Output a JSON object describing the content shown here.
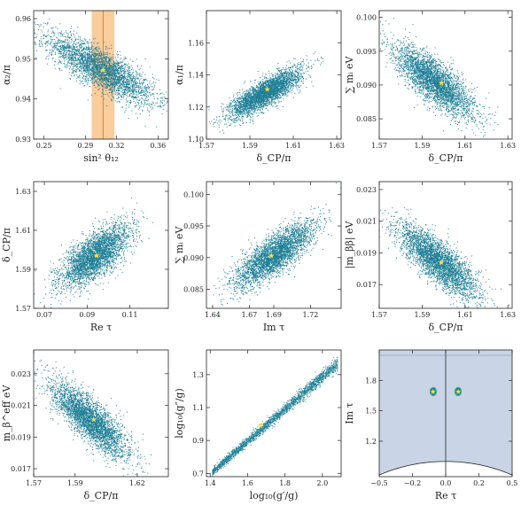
{
  "colors": {
    "points": "#1f7f96",
    "star": "#ffe23a",
    "band": "#f7a24a",
    "region": "#c9d4e6",
    "frame": "#222222"
  },
  "chart_data": [
    {
      "type": "scatter",
      "xlabel": "sin² θ₁₂",
      "ylabel": "α₂/π",
      "xticks": [
        "0.25",
        "0.29",
        "0.32",
        "0.36"
      ],
      "yticks": [
        "0.93",
        "0.94",
        "0.95",
        "0.96"
      ],
      "xlim": [
        0.24,
        0.37
      ],
      "ylim": [
        0.93,
        0.962
      ],
      "xtick_values": [
        0.25,
        0.29,
        0.32,
        0.36
      ],
      "ytick_values": [
        0.93,
        0.94,
        0.95,
        0.96
      ],
      "cloud": {
        "center": [
          0.305,
          0.9475
        ],
        "sx": 0.027,
        "sy": 0.0045,
        "rho": -0.82
      },
      "best_fit": [
        0.307,
        0.9472
      ],
      "band": {
        "x_range": [
          0.296,
          0.318
        ],
        "center": 0.307
      }
    },
    {
      "type": "scatter",
      "xlabel": "δ_CP/π",
      "ylabel": "α₁/π",
      "xticks": [
        "1.57",
        "1.59",
        "1.61",
        "1.63"
      ],
      "yticks": [
        "1.10",
        "1.12",
        "1.14",
        "1.16"
      ],
      "xlim": [
        1.57,
        1.632
      ],
      "ylim": [
        1.1,
        1.18
      ],
      "xtick_values": [
        1.57,
        1.59,
        1.61,
        1.63
      ],
      "ytick_values": [
        1.1,
        1.12,
        1.14,
        1.16
      ],
      "cloud": {
        "center": [
          1.597,
          1.129
        ],
        "sx": 0.0085,
        "sy": 0.0078,
        "rho": 0.82
      },
      "best_fit": [
        1.598,
        1.131
      ]
    },
    {
      "type": "scatter",
      "xlabel": "δ_CP/π",
      "ylabel": "∑ mᵢ eV",
      "xticks": [
        "1.57",
        "1.59",
        "1.61",
        "1.63"
      ],
      "yticks": [
        "0.085",
        "0.090",
        "0.095",
        "0.100"
      ],
      "xlim": [
        1.57,
        1.632
      ],
      "ylim": [
        0.082,
        0.101
      ],
      "xtick_values": [
        1.57,
        1.59,
        1.61,
        1.63
      ],
      "ytick_values": [
        0.085,
        0.09,
        0.095,
        0.1
      ],
      "cloud": {
        "center": [
          1.596,
          0.0905
        ],
        "sx": 0.0095,
        "sy": 0.0027,
        "rho": -0.78
      },
      "best_fit": [
        1.599,
        0.0903
      ]
    },
    {
      "type": "scatter",
      "xlabel": "Re τ",
      "ylabel": "δ_CP/π",
      "xticks": [
        "0.07",
        "0.09",
        "0.11"
      ],
      "yticks": [
        "1.57",
        "1.59",
        "1.61",
        "1.63"
      ],
      "xlim": [
        0.065,
        0.128
      ],
      "ylim": [
        1.57,
        1.635
      ],
      "xtick_values": [
        0.07,
        0.09,
        0.11
      ],
      "ytick_values": [
        1.57,
        1.59,
        1.61,
        1.63
      ],
      "cloud": {
        "center": [
          0.0935,
          1.597
        ],
        "sx": 0.0085,
        "sy": 0.0085,
        "rho": 0.7
      },
      "best_fit": [
        0.0945,
        1.597
      ]
    },
    {
      "type": "scatter",
      "xlabel": "Im τ",
      "ylabel": "∑ mᵢ eV",
      "xticks": [
        "1.64",
        "1.67",
        "1.69",
        "1.72"
      ],
      "yticks": [
        "0.085",
        "0.090",
        "0.095",
        "0.100"
      ],
      "xlim": [
        1.635,
        1.745
      ],
      "ylim": [
        0.082,
        0.102
      ],
      "xtick_values": [
        1.64,
        1.67,
        1.69,
        1.72
      ],
      "ytick_values": [
        0.085,
        0.09,
        0.095,
        0.1
      ],
      "cloud": {
        "center": [
          1.69,
          0.0905
        ],
        "sx": 0.017,
        "sy": 0.0027,
        "rho": 0.8
      },
      "best_fit": [
        1.688,
        0.0903
      ]
    },
    {
      "type": "scatter",
      "xlabel": "δ_CP/π",
      "ylabel": "|m_ββ| eV",
      "xticks": [
        "1.57",
        "1.59",
        "1.61",
        "1.63"
      ],
      "yticks": [
        "0.017",
        "0.019",
        "0.021",
        "0.023"
      ],
      "xlim": [
        1.57,
        1.632
      ],
      "ylim": [
        0.0155,
        0.0235
      ],
      "xtick_values": [
        1.57,
        1.59,
        1.61,
        1.63
      ],
      "ytick_values": [
        0.017,
        0.019,
        0.021,
        0.023
      ],
      "cloud": {
        "center": [
          1.597,
          0.0185
        ],
        "sx": 0.0095,
        "sy": 0.0012,
        "rho": -0.8
      },
      "best_fit": [
        1.599,
        0.0184
      ]
    },
    {
      "type": "scatter",
      "xlabel": "δ_CP/π",
      "ylabel": "m_β^eff eV",
      "xticks": [
        "1.57",
        "1.59",
        "1.62"
      ],
      "yticks": [
        "0.017",
        "0.019",
        "0.021",
        "0.023"
      ],
      "xlim": [
        1.57,
        1.635
      ],
      "ylim": [
        0.0165,
        0.0245
      ],
      "xtick_values": [
        1.57,
        1.59,
        1.62
      ],
      "ytick_values": [
        0.017,
        0.019,
        0.021,
        0.023
      ],
      "cloud": {
        "center": [
          1.597,
          0.0201
        ],
        "sx": 0.0095,
        "sy": 0.0012,
        "rho": -0.8
      },
      "best_fit": [
        1.599,
        0.0201
      ]
    },
    {
      "type": "scatter",
      "xlabel": "log₁₀(g′/g)",
      "ylabel": "log₁₀(g″/g)",
      "xticks": [
        "1.4",
        "1.6",
        "1.8",
        "2.0"
      ],
      "yticks": [
        "0.7",
        "0.9",
        "1.1",
        "1.3"
      ],
      "xlim": [
        1.38,
        2.1
      ],
      "ylim": [
        0.68,
        1.45
      ],
      "xtick_values": [
        1.4,
        1.6,
        1.8,
        2.0
      ],
      "ytick_values": [
        0.7,
        0.9,
        1.1,
        1.3
      ],
      "line": {
        "x_range": [
          1.41,
          2.08
        ],
        "slope": 0.98,
        "intercept": -0.67
      },
      "best_fit": [
        1.67,
        0.99
      ]
    },
    {
      "type": "scatter",
      "xlabel": "Re τ",
      "ylabel": "Im τ",
      "xticks": [
        "−0.5",
        "−0.2",
        "0.0",
        "0.2",
        "0.5"
      ],
      "yticks": [
        "1.2",
        "1.5",
        "1.8"
      ],
      "xlim": [
        -0.5,
        0.5
      ],
      "ylim": [
        0.85,
        2.1
      ],
      "xtick_values": [
        -0.5,
        -0.25,
        0.0,
        0.25,
        0.5
      ],
      "ytick_values": [
        1.2,
        1.5,
        1.8
      ],
      "blobs": [
        [
          -0.0935,
          1.69
        ],
        [
          0.0935,
          1.69
        ]
      ],
      "best_fit_points": [
        [
          -0.0945,
          1.688
        ],
        [
          0.0945,
          1.688
        ]
      ]
    }
  ]
}
